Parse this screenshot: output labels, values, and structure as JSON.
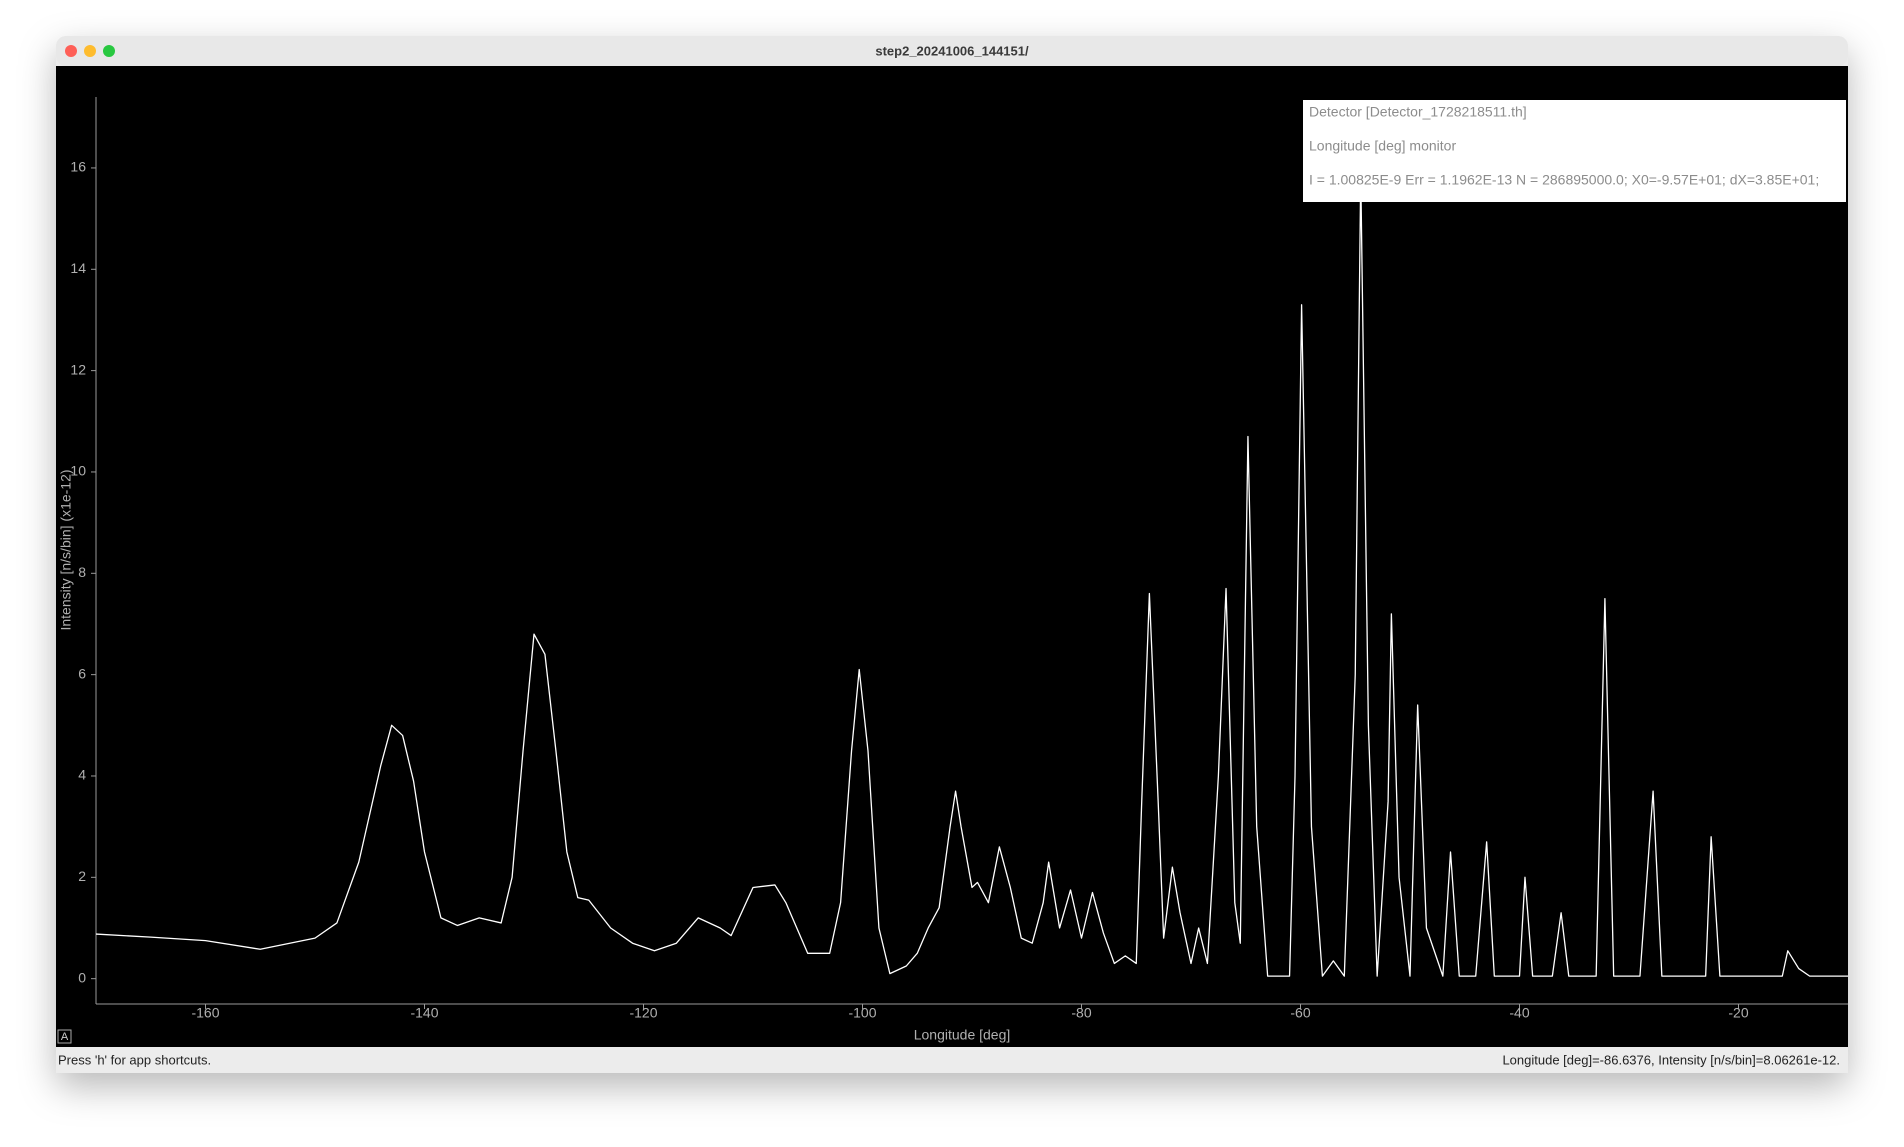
{
  "window": {
    "title": "step2_20241006_144151/",
    "status_left": "Press 'h' for app shortcuts.",
    "status_right": "Longitude [deg]=-86.6376, Intensity [n/s/bin]=8.06261e-12.",
    "corner_button": "A"
  },
  "chart_data": {
    "type": "line",
    "annotations": [
      "Detector [Detector_1728218511.th]",
      "Longitude [deg] monitor",
      "I = 1.00825E-9 Err = 1.1962E-13 N = 286895000.0; X0=-9.57E+01; dX=3.85E+01;"
    ],
    "xlabel": "Longitude [deg]",
    "ylabel": "Intensity [n/s/bin] (x1e-12)",
    "color": "#ffffff",
    "xlim": [
      -170,
      -10
    ],
    "xticks": [
      -160,
      -140,
      -120,
      -100,
      -80,
      -60,
      -40,
      -20
    ],
    "ylim": [
      -0.5,
      17.4
    ],
    "yticks": [
      0,
      2,
      4,
      6,
      8,
      10,
      12,
      14,
      16
    ],
    "x": [
      -170,
      -165,
      -160,
      -155,
      -150,
      -148,
      -146,
      -144,
      -143,
      -142,
      -141,
      -140,
      -138.5,
      -137,
      -135,
      -133,
      -132,
      -131,
      -130,
      -129,
      -128,
      -127,
      -126,
      -125,
      -123,
      -121,
      -119,
      -117,
      -115,
      -113,
      -112,
      -110,
      -108,
      -107,
      -105,
      -103,
      -102,
      -101,
      -100.3,
      -99.5,
      -98.5,
      -97.5,
      -96,
      -95,
      -94,
      -93,
      -92,
      -91.5,
      -91,
      -90,
      -89.5,
      -88.5,
      -87.5,
      -86.5,
      -85.5,
      -84.5,
      -83.5,
      -83,
      -82,
      -81,
      -80,
      -79,
      -78,
      -77,
      -76,
      -75,
      -74.5,
      -73.8,
      -73,
      -72.5,
      -71.7,
      -71,
      -70,
      -69.3,
      -68.5,
      -67.5,
      -66.8,
      -66,
      -65.5,
      -64.8,
      -64,
      -63,
      -61,
      -60.5,
      -59.9,
      -59,
      -58,
      -57,
      -56,
      -55,
      -54.5,
      -53.8,
      -53,
      -52,
      -51.7,
      -51,
      -50,
      -49.3,
      -48.5,
      -47,
      -46.3,
      -45.5,
      -44,
      -43,
      -42.3,
      -40,
      -39.5,
      -38.8,
      -37,
      -36.2,
      -35.5,
      -33,
      -32.2,
      -31.4,
      -29,
      -27.8,
      -27,
      -23,
      -22.5,
      -21.7,
      -16,
      -15.5,
      -14.5,
      -13.5,
      -10
    ],
    "values": [
      0.88,
      0.82,
      0.75,
      0.58,
      0.8,
      1.1,
      2.3,
      4.2,
      5.0,
      4.8,
      3.9,
      2.5,
      1.2,
      1.05,
      1.2,
      1.1,
      2.0,
      4.5,
      6.8,
      6.4,
      4.5,
      2.5,
      1.6,
      1.55,
      1.0,
      0.7,
      0.55,
      0.7,
      1.2,
      1.0,
      0.85,
      1.8,
      1.85,
      1.5,
      0.5,
      0.5,
      1.5,
      4.5,
      6.1,
      4.5,
      1.0,
      0.1,
      0.25,
      0.5,
      1.0,
      1.4,
      3.0,
      3.7,
      3.0,
      1.8,
      1.9,
      1.5,
      2.6,
      1.8,
      0.8,
      0.7,
      1.5,
      2.3,
      1.0,
      1.75,
      0.8,
      1.7,
      0.9,
      0.3,
      0.45,
      0.3,
      3.5,
      7.6,
      3.5,
      0.8,
      2.2,
      1.3,
      0.3,
      1.0,
      0.3,
      4.0,
      7.7,
      1.5,
      0.7,
      10.7,
      3.0,
      0.05,
      0.05,
      4.0,
      13.3,
      3.0,
      0.05,
      0.35,
      0.05,
      6,
      15.9,
      5,
      0.05,
      3.5,
      7.2,
      2.0,
      0.05,
      5.4,
      1.0,
      0.05,
      2.5,
      0.05,
      0.05,
      2.7,
      0.05,
      0.05,
      2.0,
      0.05,
      0.05,
      1.3,
      0.05,
      0.05,
      7.5,
      0.05,
      0.05,
      3.7,
      0.05,
      0.05,
      2.8,
      0.05,
      0.05,
      0.55,
      0.2,
      0.05,
      0.05
    ]
  }
}
